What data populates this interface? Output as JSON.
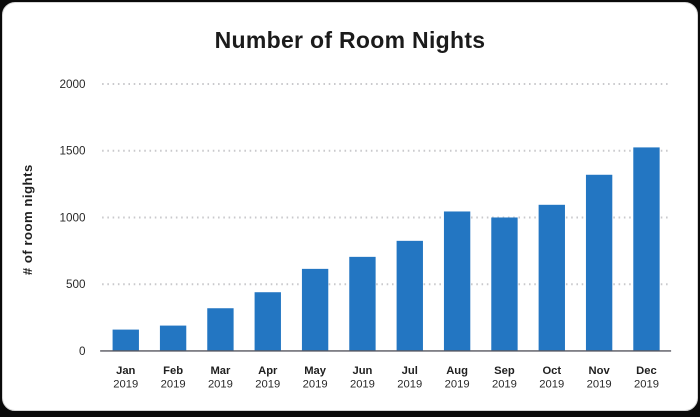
{
  "chart_data": {
    "type": "bar",
    "title": "Number of Room Nights",
    "ylabel": "# of room nights",
    "xlabel": "",
    "categories": [
      {
        "month": "Jan",
        "year": "2019"
      },
      {
        "month": "Feb",
        "year": "2019"
      },
      {
        "month": "Mar",
        "year": "2019"
      },
      {
        "month": "Apr",
        "year": "2019"
      },
      {
        "month": "May",
        "year": "2019"
      },
      {
        "month": "Jun",
        "year": "2019"
      },
      {
        "month": "Jul",
        "year": "2019"
      },
      {
        "month": "Aug",
        "year": "2019"
      },
      {
        "month": "Sep",
        "year": "2019"
      },
      {
        "month": "Oct",
        "year": "2019"
      },
      {
        "month": "Nov",
        "year": "2019"
      },
      {
        "month": "Dec",
        "year": "2019"
      }
    ],
    "values": [
      160,
      190,
      320,
      440,
      615,
      705,
      825,
      1045,
      1000,
      1095,
      1320,
      1525
    ],
    "yticks": [
      0,
      500,
      1000,
      1500,
      2000
    ],
    "ylim": [
      0,
      2000
    ],
    "grid": "horizontal-dotted",
    "legend_position": "none",
    "colors": {
      "bar": "#2376c2",
      "card_background": "#ffffff",
      "page_background": "#0a0a0a"
    }
  }
}
